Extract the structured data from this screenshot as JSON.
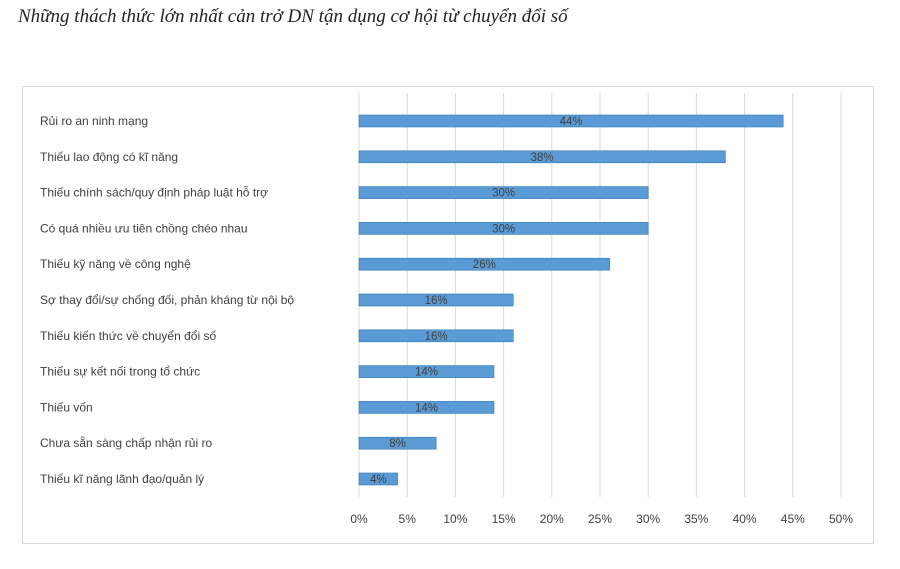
{
  "title": "Những thách thức lớn nhất cản trở DN tận dụng cơ hội từ chuyển đổi số",
  "chart_data": {
    "type": "bar",
    "orientation": "horizontal",
    "categories": [
      "Rủi ro an ninh mạng",
      "Thiếu lao động có kĩ năng",
      "Thiếu chính sách/quy định pháp luật hỗ trợ",
      "Có quá nhiều ưu tiên chồng chéo nhau",
      "Thiếu kỹ năng về công nghệ",
      "Sợ thay đổi/sự chống đối, phản kháng từ nội bộ",
      "Thiếu kiến thức về chuyển đổi số",
      "Thiếu sự kết nối trong tổ chức",
      "Thiếu vốn",
      "Chưa sẵn sàng chấp nhận rủi ro",
      "Thiếu kĩ năng lãnh đạo/quản lý"
    ],
    "values": [
      44,
      38,
      30,
      30,
      26,
      16,
      16,
      14,
      14,
      8,
      4
    ],
    "value_labels": [
      "44%",
      "38%",
      "30%",
      "30%",
      "26%",
      "16%",
      "16%",
      "14%",
      "14%",
      "8%",
      "4%"
    ],
    "xlim": [
      0,
      50
    ],
    "x_ticks": [
      0,
      5,
      10,
      15,
      20,
      25,
      30,
      35,
      40,
      45,
      50
    ],
    "x_tick_labels": [
      "0%",
      "5%",
      "10%",
      "15%",
      "20%",
      "25%",
      "30%",
      "35%",
      "40%",
      "45%",
      "50%"
    ],
    "grid": true,
    "bar_color": "#5b9bd5",
    "bar_border_color": "#2e75b6"
  }
}
